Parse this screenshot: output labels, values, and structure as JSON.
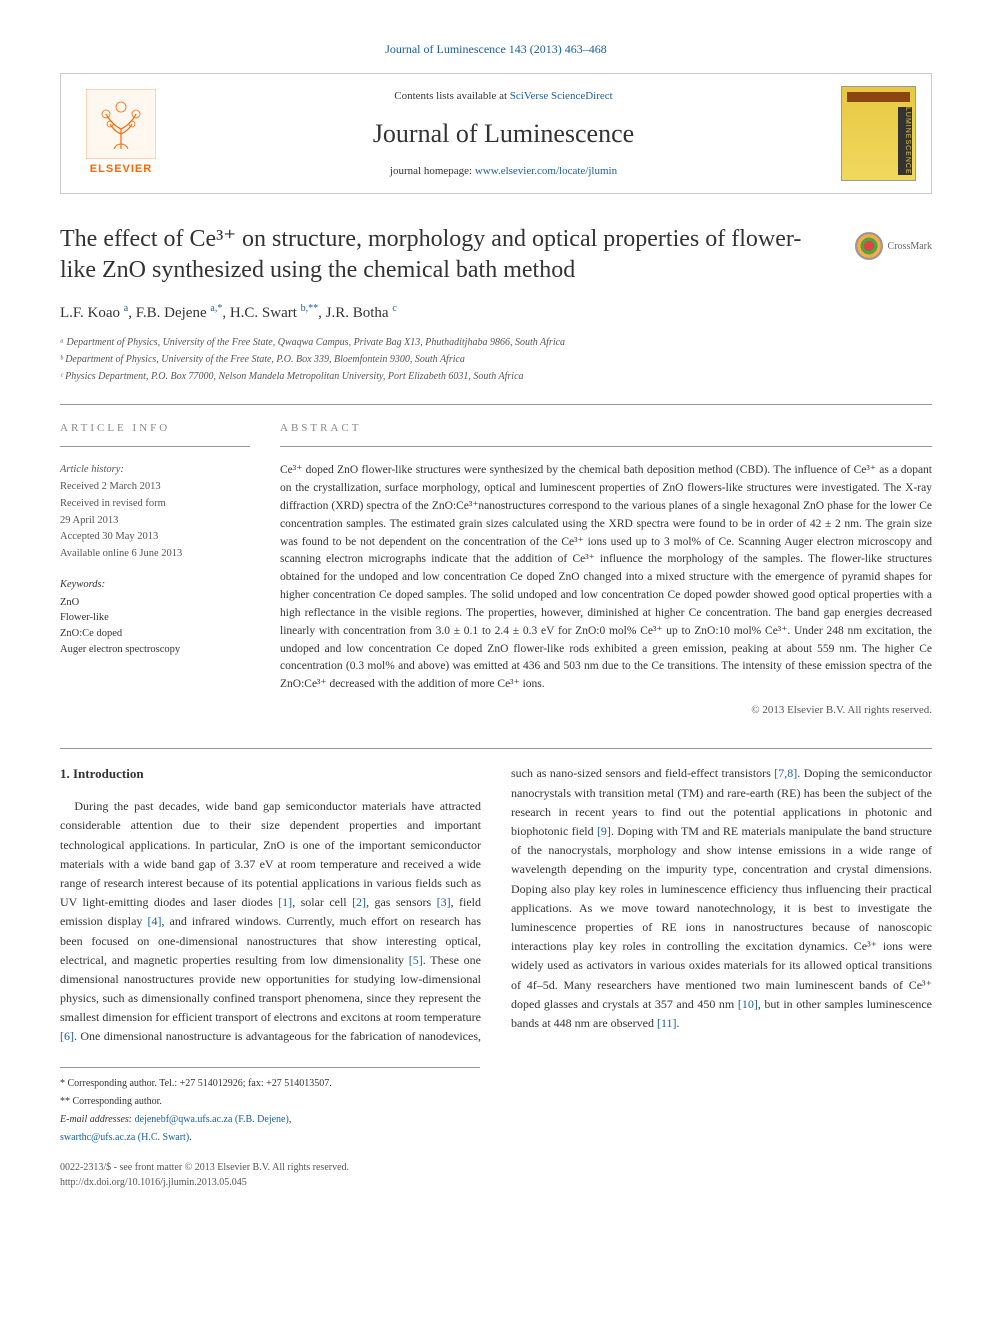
{
  "top_citation": "Journal of Luminescence 143 (2013) 463–468",
  "header": {
    "contents_prefix": "Contents lists available at ",
    "contents_link": "SciVerse ScienceDirect",
    "journal_name": "Journal of Luminescence",
    "homepage_prefix": "journal homepage: ",
    "homepage_link": "www.elsevier.com/locate/jlumin",
    "publisher_text": "ELSEVIER",
    "cover_side": "LUMINESCENCE"
  },
  "crossmark": "CrossMark",
  "title": "The effect of Ce³⁺ on structure, morphology and optical properties of flower-like ZnO synthesized using the chemical bath method",
  "authors_html": "L.F. Koao <sup>a</sup>, F.B. Dejene <sup>a,*</sup>, H.C. Swart <sup>b,**</sup>, J.R. Botha <sup>c</sup>",
  "affiliations": [
    "ᵃ Department of Physics, University of the Free State, Qwaqwa Campus, Private Bag X13, Phuthaditjhaba 9866, South Africa",
    "ᵇ Department of Physics, University of the Free State, P.O. Box 339, Bloemfontein 9300, South Africa",
    "ᶜ Physics Department, P.O. Box 77000, Nelson Mandela Metropolitan University, Port Elizabeth 6031, South Africa"
  ],
  "article_info": {
    "label": "ARTICLE INFO",
    "history_label": "Article history:",
    "history": [
      "Received 2 March 2013",
      "Received in revised form",
      "29 April 2013",
      "Accepted 30 May 2013",
      "Available online 6 June 2013"
    ],
    "keywords_label": "Keywords:",
    "keywords": [
      "ZnO",
      "Flower-like",
      "ZnO:Ce doped",
      "Auger electron spectroscopy"
    ]
  },
  "abstract": {
    "label": "ABSTRACT",
    "text": "Ce³⁺ doped ZnO flower-like structures were synthesized by the chemical bath deposition method (CBD). The influence of Ce³⁺ as a dopant on the crystallization, surface morphology, optical and luminescent properties of ZnO flowers-like structures were investigated. The X-ray diffraction (XRD) spectra of the ZnO:Ce³⁺nanostructures correspond to the various planes of a single hexagonal ZnO phase for the lower Ce concentration samples. The estimated grain sizes calculated using the XRD spectra were found to be in order of 42 ± 2 nm. The grain size was found to be not dependent on the concentration of the Ce³⁺ ions used up to 3 mol% of Ce. Scanning Auger electron microscopy and scanning electron micrographs indicate that the addition of Ce³⁺ influence the morphology of the samples. The flower-like structures obtained for the undoped and low concentration Ce doped ZnO changed into a mixed structure with the emergence of pyramid shapes for higher concentration Ce doped samples. The solid undoped and low concentration Ce doped powder showed good optical properties with a high reflectance in the visible regions. The properties, however, diminished at higher Ce concentration. The band gap energies decreased linearly with concentration from 3.0 ± 0.1 to 2.4 ± 0.3 eV for ZnO:0 mol% Ce³⁺ up to ZnO:10 mol% Ce³⁺. Under 248 nm excitation, the undoped and low concentration Ce doped ZnO flower-like rods exhibited a green emission, peaking at about 559 nm. The higher Ce concentration (0.3 mol% and above) was emitted at 436 and 503 nm due to the Ce transitions. The intensity of these emission spectra of the ZnO:Ce³⁺ decreased with the addition of more Ce³⁺ ions.",
    "copyright": "© 2013 Elsevier B.V. All rights reserved."
  },
  "body": {
    "section1_heading": "1. Introduction",
    "para1_a": "During the past decades, wide band gap semiconductor materials have attracted considerable attention due to their size dependent properties and important technological applications. In particular, ZnO is one of the important semiconductor materials with a wide band gap of 3.37 eV at room temperature and received a wide range of research interest because of its potential applications in various fields such as UV light-emitting diodes and laser diodes ",
    "ref1": "[1]",
    "para1_b": ", solar cell ",
    "ref2": "[2]",
    "para1_c": ", gas sensors ",
    "ref3": "[3]",
    "para1_d": ", field emission display ",
    "ref4": "[4]",
    "para1_e": ", and infrared windows. Currently, much effort on research has been focused on one-dimensional nanostructures that show interesting optical, electrical, and magnetic properties resulting from low dimensionality ",
    "ref5": "[5]",
    "para1_f": ". These one dimensional nanostructures provide new opportunities for studying low-dimensional physics, such as dimensionally confined transport phenomena, since they represent the smallest dimension for efficient transport of electrons and excitons at room temperature ",
    "ref6": "[6]",
    "para1_g": ". One dimensional nanostructure is advantageous for the fabrication of nanodevices, such as nano-sized sensors and field-effect transistors ",
    "ref78": "[7,8]",
    "para1_h": ". Doping the semiconductor nanocrystals with transition metal (TM) and rare-earth (RE) has been the subject of the research in recent years to find out the potential applications in photonic and biophotonic field ",
    "ref9": "[9]",
    "para1_i": ". Doping with TM and RE materials manipulate the band structure of the nanocrystals, morphology and show intense emissions in a wide range of wavelength depending on the impurity type, concentration and crystal dimensions. Doping also play key roles in luminescence efficiency thus influencing their practical applications. As we move toward nanotechnology, it is best to investigate the luminescence properties of RE ions in nanostructures because of nanoscopic interactions play key roles in controlling the excitation dynamics. Ce³⁺ ions were widely used as activators in various oxides materials for its allowed optical transitions of 4f–5d. Many researchers have mentioned two main luminescent bands of Ce³⁺ doped glasses and crystals at 357 and 450 nm ",
    "ref10": "[10]",
    "para1_j": ", but in other samples luminescence bands at 448 nm are observed ",
    "ref11": "[11]",
    "para1_k": "."
  },
  "footnotes": {
    "corr1": "* Corresponding author. Tel.: +27 514012926; fax: +27 514013507.",
    "corr2": "** Corresponding author.",
    "email_label": "E-mail addresses: ",
    "email1": "dejenebf@qwa.ufs.ac.za (F.B. Dejene)",
    "email_sep": ",",
    "email2": "swarthc@ufs.ac.za (H.C. Swart)",
    "email_end": "."
  },
  "footer": {
    "line1": "0022-2313/$ - see front matter © 2013 Elsevier B.V. All rights reserved.",
    "line2": "http://dx.doi.org/10.1016/j.jlumin.2013.05.045"
  },
  "colors": {
    "link": "#1a5f9e",
    "elsevier_orange": "#ff6600",
    "text": "#333333",
    "muted": "#555555",
    "border": "#cccccc"
  }
}
